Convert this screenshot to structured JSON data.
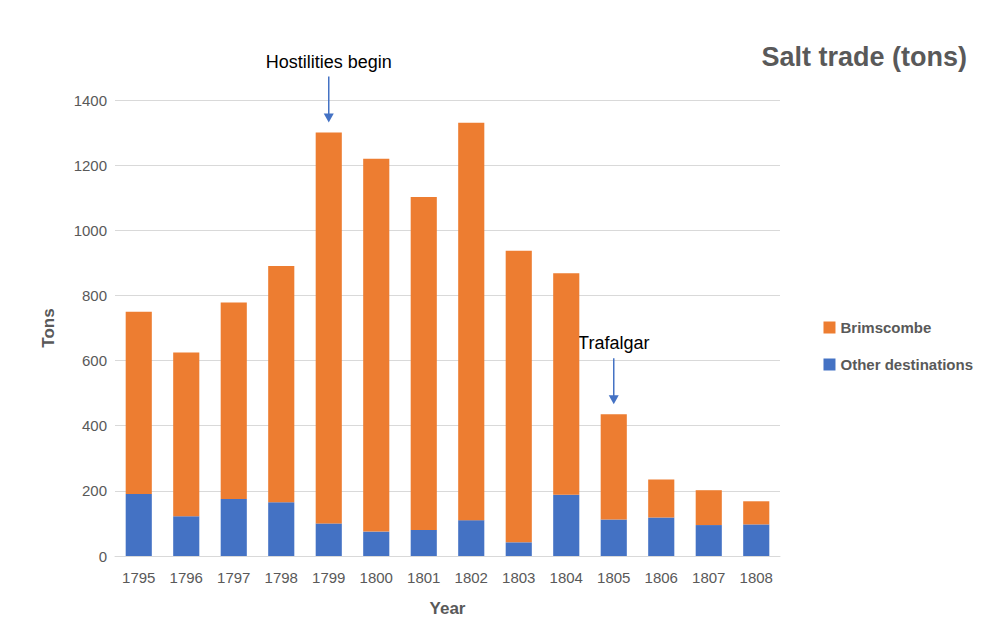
{
  "chart_data": {
    "type": "bar",
    "title": "Salt trade (tons)",
    "x_label": "Year",
    "y_label": "Tons",
    "categories": [
      "1795",
      "1796",
      "1797",
      "1798",
      "1799",
      "1800",
      "1801",
      "1802",
      "1803",
      "1804",
      "1805",
      "1806",
      "1807",
      "1808"
    ],
    "series": [
      {
        "name": "Other destinations",
        "color": "#4472c4",
        "values": [
          190,
          122,
          175,
          165,
          100,
          75,
          80,
          110,
          42,
          188,
          112,
          118,
          95,
          97
        ]
      },
      {
        "name": "Brimscombe",
        "color": "#ed7d31",
        "values": [
          560,
          503,
          603,
          725,
          1200,
          1145,
          1022,
          1220,
          895,
          680,
          323,
          117,
          107,
          71
        ]
      }
    ],
    "stacked": true,
    "ylim": [
      0,
      1400
    ],
    "yticks": [
      0,
      200,
      400,
      600,
      800,
      1000,
      1200,
      1400
    ],
    "grid": true,
    "legend": "right",
    "annotations": [
      {
        "text": "Hostilities begin",
        "category": "1799"
      },
      {
        "text": "Trafalgar",
        "category": "1805"
      }
    ]
  }
}
